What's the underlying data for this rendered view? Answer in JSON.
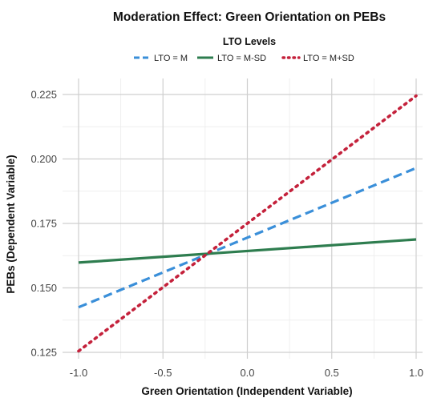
{
  "chart_data": {
    "type": "line",
    "title": "Moderation Effect: Green Orientation on PEBs",
    "xlabel": "Green Orientation (Independent Variable)",
    "ylabel": "PEBs (Dependent Variable)",
    "xlim": [
      -1.0,
      1.0
    ],
    "ylim": [
      0.125,
      0.225
    ],
    "x_ticks": [
      -1.0,
      -0.5,
      0.0,
      0.5,
      1.0
    ],
    "x_tick_labels": [
      "-1.0",
      "-0.5",
      "0.0",
      "0.5",
      "1.0"
    ],
    "y_ticks": [
      0.125,
      0.15,
      0.175,
      0.2,
      0.225
    ],
    "y_tick_labels": [
      "0.125",
      "0.150",
      "0.175",
      "0.200",
      "0.225"
    ],
    "grid": true,
    "legend": {
      "title": "LTO Levels",
      "placement": "top"
    },
    "series": [
      {
        "name": "LTO = M",
        "x": [
          -1.0,
          1.0
        ],
        "y": [
          0.1425,
          0.1965
        ],
        "color": "#3a8fd9",
        "style": "dashed"
      },
      {
        "name": "LTO = M-SD",
        "x": [
          -1.0,
          1.0
        ],
        "y": [
          0.1598,
          0.1688
        ],
        "color": "#2e7d4f",
        "style": "solid"
      },
      {
        "name": "LTO = M+SD",
        "x": [
          -1.0,
          1.0
        ],
        "y": [
          0.1255,
          0.2245
        ],
        "color": "#c4213b",
        "style": "dotted"
      }
    ]
  }
}
